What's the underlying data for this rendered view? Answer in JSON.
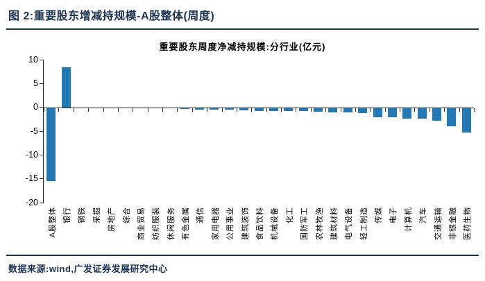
{
  "header": {
    "title": "图 2:重要股东增减持规模-A股整体(周度)"
  },
  "chart_data": {
    "type": "bar",
    "title": "重要股东周度净减持规模:分行业(亿元)",
    "categories": [
      "A股整体",
      "银行",
      "钢铁",
      "采掘",
      "房地产",
      "综合",
      "商业贸易",
      "纺织服装",
      "休闲服务",
      "有色金属",
      "通信",
      "家用电器",
      "公用事业",
      "建筑装饰",
      "食品饮料",
      "机械设备",
      "化工",
      "国防军工",
      "农林牧渔",
      "建筑材料",
      "电气设备",
      "轻工制造",
      "传媒",
      "电子",
      "计算机",
      "汽车",
      "交通运输",
      "非银金融",
      "医药生物"
    ],
    "values": [
      -15.3,
      8.4,
      0,
      0,
      0,
      0,
      0,
      0,
      0,
      -0.1,
      -0.3,
      -0.4,
      -0.4,
      -0.5,
      -0.6,
      -0.6,
      -0.7,
      -0.7,
      -0.8,
      -0.9,
      -0.9,
      -1.1,
      -1.9,
      -2.0,
      -2.2,
      -2.3,
      -2.7,
      -3.9,
      -5.2
    ],
    "unit": "亿元",
    "ylim": [
      -20,
      10
    ],
    "yticks": [
      10,
      5,
      0,
      -5,
      -10,
      -15,
      -20
    ],
    "bar_color": "#2478b4",
    "grid": "off",
    "legend": "none"
  },
  "footer": {
    "source": "数据来源:wind,广发证券发展研究中心"
  },
  "colors": {
    "accent_navy": "#1c3350",
    "bar_blue": "#2478b4",
    "axis": "#2b2b2b"
  }
}
